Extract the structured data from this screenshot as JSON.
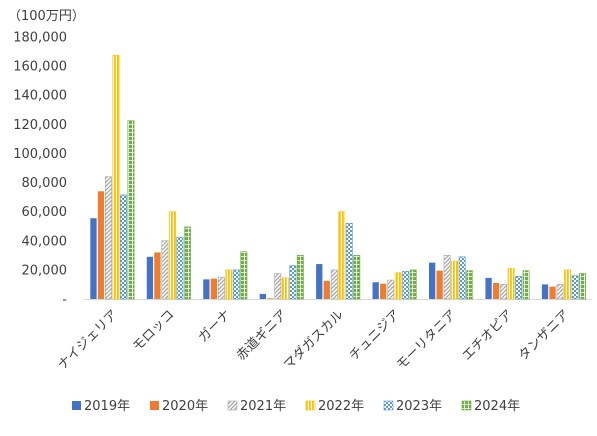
{
  "chart_data": {
    "type": "bar",
    "unit_label": "（100万円）",
    "categories": [
      "ナイジェリア",
      "モロッコ",
      "ガーナ",
      "赤道ギニア",
      "マダガスカル",
      "チュニジア",
      "モーリタニア",
      "エチオピア",
      "タンザニア"
    ],
    "series": [
      {
        "name": "2019年",
        "color": "#4472C4",
        "pattern": "solid",
        "values": [
          55500,
          29000,
          13500,
          3500,
          24000,
          11500,
          25000,
          14500,
          10000
        ]
      },
      {
        "name": "2020年",
        "color": "#ED7D31",
        "pattern": "solid",
        "values": [
          74000,
          32000,
          14000,
          500,
          12500,
          10500,
          19500,
          11000,
          8500
        ]
      },
      {
        "name": "2021年",
        "color": "#A5A5A5",
        "pattern": "diagonal",
        "values": [
          84000,
          40000,
          15000,
          17500,
          20000,
          13000,
          30000,
          10000,
          10000
        ]
      },
      {
        "name": "2022年",
        "color": "#FFC000",
        "pattern": "vertical",
        "values": [
          167500,
          60000,
          20000,
          14500,
          60000,
          18000,
          26000,
          21000,
          20000
        ]
      },
      {
        "name": "2023年",
        "color": "#5B9BD5",
        "pattern": "checker",
        "values": [
          71500,
          42500,
          20000,
          23000,
          52000,
          19000,
          29000,
          15500,
          16000
        ]
      },
      {
        "name": "2024年",
        "color": "#70AD47",
        "pattern": "grid",
        "values": [
          122500,
          49500,
          32500,
          30000,
          30000,
          20000,
          19500,
          19500,
          17500
        ]
      }
    ],
    "ylim": [
      0,
      180000
    ],
    "yticks": [
      0,
      20000,
      40000,
      60000,
      80000,
      100000,
      120000,
      140000,
      160000,
      180000
    ],
    "ytick_labels": [
      "-",
      "20,000",
      "40,000",
      "60,000",
      "80,000",
      "100,000",
      "120,000",
      "140,000",
      "160,000",
      "180,000"
    ],
    "grid": false,
    "legend_position": "bottom"
  }
}
